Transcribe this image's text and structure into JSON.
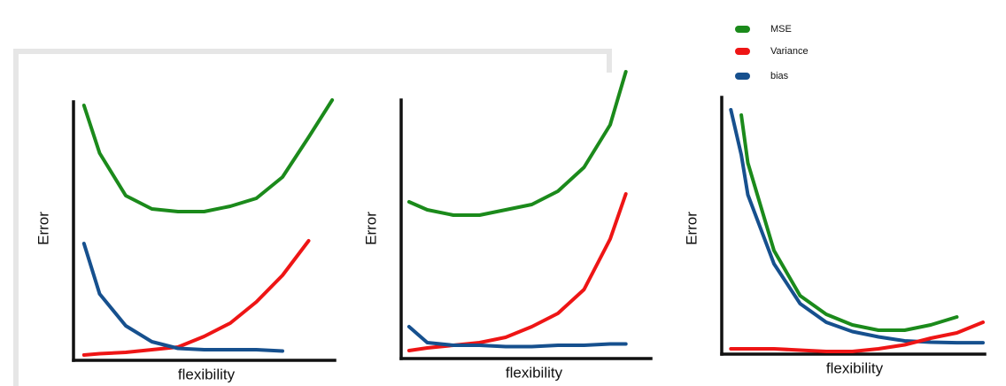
{
  "chart_data": [
    {
      "type": "line",
      "x_label": "flexibility",
      "y_label": "Error",
      "xlim": [
        0,
        10
      ],
      "ylim": [
        0,
        11
      ],
      "x": [
        0.4,
        1,
        2,
        3,
        4,
        5,
        6,
        7,
        8,
        9,
        9.9
      ],
      "series": [
        {
          "name": "MSE",
          "color": "#1b8a1b",
          "values": [
            9.6,
            7.8,
            6.2,
            5.7,
            5.6,
            5.6,
            5.8,
            6.1,
            6.9,
            8.4,
            9.8
          ]
        },
        {
          "name": "Variance",
          "color": "#ee1515",
          "values": [
            0.2,
            0.25,
            0.3,
            0.4,
            0.5,
            0.9,
            1.4,
            2.2,
            3.2,
            4.5,
            null
          ]
        },
        {
          "name": "bias",
          "color": "#16508e",
          "values": [
            4.4,
            2.5,
            1.3,
            0.7,
            0.45,
            0.4,
            0.4,
            0.4,
            0.35,
            null,
            null
          ]
        }
      ]
    },
    {
      "type": "line",
      "x_label": "flexibility",
      "y_label": "Error",
      "xlim": [
        0,
        10
      ],
      "ylim": [
        0,
        11
      ],
      "x": [
        0.3,
        1,
        2,
        3,
        4,
        5,
        6,
        7,
        8,
        8.6
      ],
      "series": [
        {
          "color": "#1b8a1b",
          "values": [
            5.9,
            5.6,
            5.4,
            5.4,
            5.6,
            5.8,
            6.3,
            7.2,
            8.8,
            10.8
          ]
        },
        {
          "color": "#ee1515",
          "values": [
            0.3,
            0.4,
            0.5,
            0.6,
            0.8,
            1.2,
            1.7,
            2.6,
            4.5,
            6.2
          ]
        },
        {
          "color": "#16508e",
          "values": [
            1.2,
            0.6,
            0.5,
            0.5,
            0.45,
            0.45,
            0.5,
            0.5,
            0.55,
            0.55
          ]
        }
      ]
    },
    {
      "type": "line",
      "x_label": "flexibility",
      "y_label": "Error",
      "xlim": [
        0,
        10
      ],
      "ylim": [
        0,
        11
      ],
      "x": [
        0.35,
        0.75,
        1,
        2,
        3,
        4,
        5,
        6,
        7,
        8,
        9,
        10
      ],
      "series": [
        {
          "color": "#1b8a1b",
          "values": [
            null,
            9,
            7.2,
            3.9,
            2.2,
            1.5,
            1.1,
            0.9,
            0.9,
            1.1,
            1.4,
            null
          ]
        },
        {
          "color": "#16508e",
          "values": [
            9.2,
            7.5,
            6,
            3.4,
            1.9,
            1.2,
            0.85,
            0.65,
            0.5,
            0.45,
            0.43,
            0.43
          ]
        },
        {
          "color": "#ee1515",
          "values": [
            0.2,
            0.2,
            0.2,
            0.2,
            0.15,
            0.1,
            0.1,
            0.2,
            0.35,
            0.6,
            0.8,
            1.2
          ]
        }
      ]
    }
  ]
}
